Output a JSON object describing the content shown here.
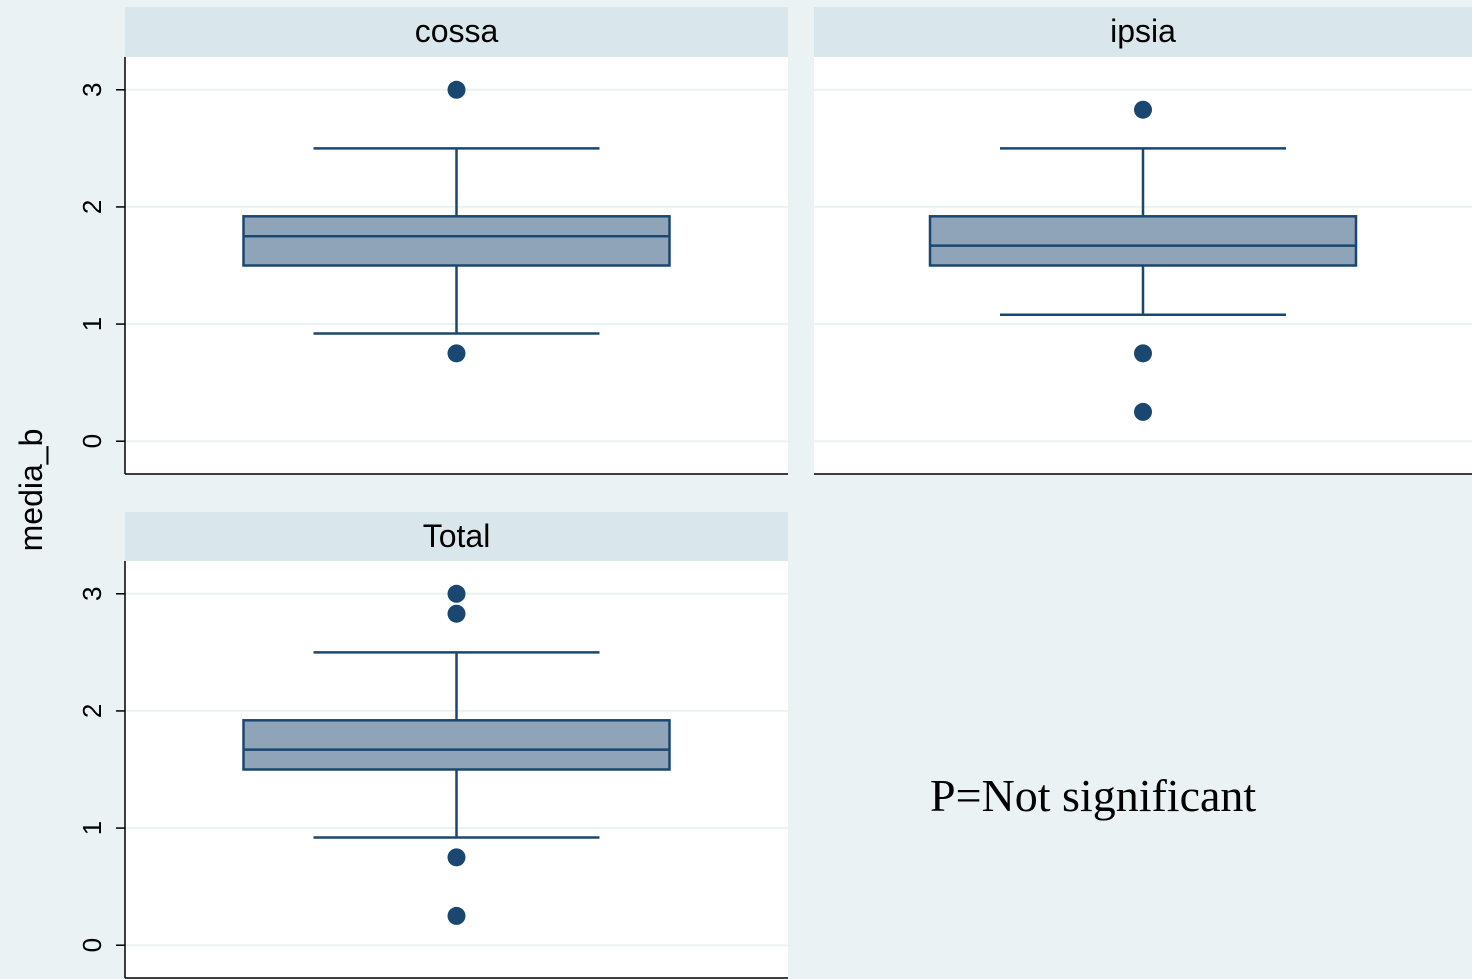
{
  "chart_data": {
    "type": "box",
    "ylabel": "media_b",
    "ylim": [
      -0.28,
      3.28
    ],
    "yticks": [
      0,
      1,
      2,
      3
    ],
    "grid": true,
    "colors": {
      "background": "#eaf2f3",
      "panel": "#ffffff",
      "strip": "#d9e6eb",
      "box_fill": "#90a4b9",
      "line": "#1a476f",
      "grid": "#eaf2f3"
    },
    "annotation": "P=Not significant",
    "panels": [
      {
        "title": "cossa",
        "q1": 1.5,
        "median": 1.75,
        "q3": 1.92,
        "whisker_low": 0.92,
        "whisker_high": 2.5,
        "outliers": [
          3.0,
          0.75
        ]
      },
      {
        "title": "ipsia",
        "q1": 1.5,
        "median": 1.67,
        "q3": 1.92,
        "whisker_low": 1.08,
        "whisker_high": 2.5,
        "outliers": [
          2.83,
          0.75,
          0.25
        ]
      },
      {
        "title": "Total",
        "q1": 1.5,
        "median": 1.67,
        "q3": 1.92,
        "whisker_low": 0.92,
        "whisker_high": 2.5,
        "outliers": [
          3.0,
          2.83,
          0.75,
          0.25
        ]
      }
    ]
  }
}
